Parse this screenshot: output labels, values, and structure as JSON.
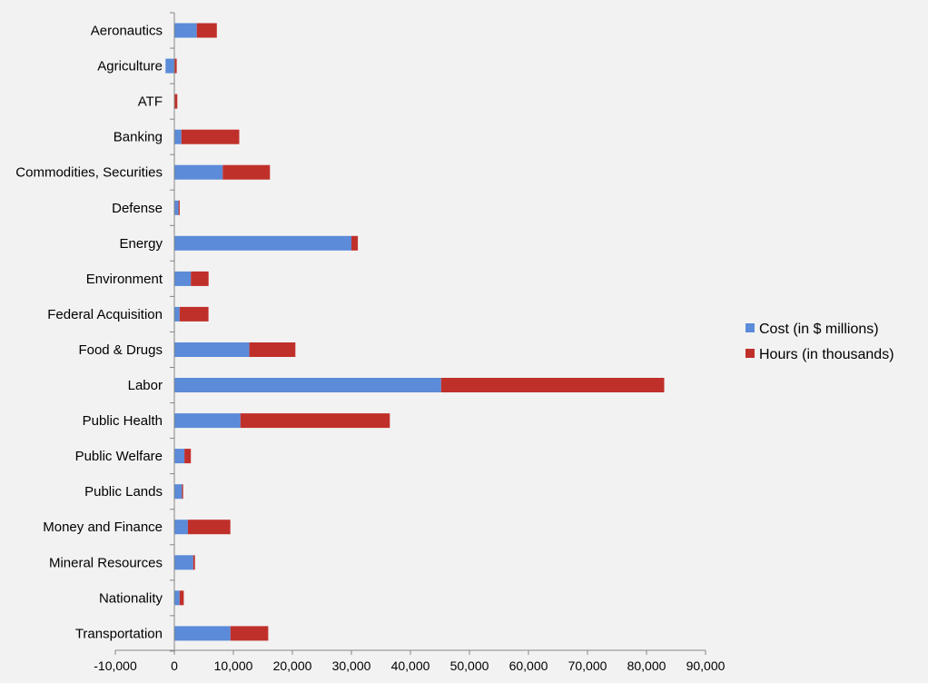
{
  "chart_data": {
    "type": "bar",
    "orientation": "horizontal",
    "stacked": true,
    "categories": [
      "Aeronautics",
      "Agriculture",
      "ATF",
      "Banking",
      "Commodities, Securities",
      "Defense",
      "Energy",
      "Environment",
      "Federal Acquisition",
      "Food & Drugs",
      "Labor",
      "Public Health",
      "Public Welfare",
      "Public Lands",
      "Money and Finance",
      "Mineral Resources",
      "Nationality",
      "Transportation"
    ],
    "series": [
      {
        "name": "Cost (in $ millions)",
        "color": "#5b8bd9",
        "values": [
          3800,
          -1500,
          0,
          1200,
          8200,
          700,
          30000,
          2800,
          900,
          12700,
          45200,
          11200,
          1700,
          1300,
          2300,
          3200,
          900,
          9500
        ]
      },
      {
        "name": "Hours (in thousands)",
        "color": "#c0302b",
        "values": [
          3400,
          400,
          500,
          9800,
          8000,
          200,
          1100,
          3000,
          4900,
          7800,
          37800,
          25300,
          1100,
          200,
          7200,
          300,
          700,
          6400
        ]
      }
    ],
    "x_ticks": [
      "-10,000",
      "0",
      "10,000",
      "20,000",
      "30,000",
      "40,000",
      "50,000",
      "60,000",
      "70,000",
      "80,000",
      "90,000"
    ],
    "xlim": [
      -10000,
      90000
    ],
    "title": "",
    "xlabel": "",
    "ylabel": "",
    "grid": false,
    "legend_position": "right"
  }
}
